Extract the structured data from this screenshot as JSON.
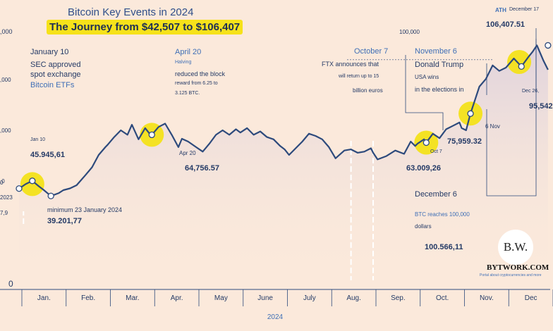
{
  "header": {
    "title": "Bitcoin Key Events in 2024",
    "subtitle": "The Journey from $42,507 to $106,407"
  },
  "brand": {
    "logo": "B.W.",
    "name": "BYTWORK.COM",
    "tagline": "Portal about cryptocurrencies and more"
  },
  "events": {
    "jan10": {
      "title": "January 10",
      "line1": "SEC approved",
      "line2": "spot exchange",
      "line3": "Bitcoin ETFs",
      "tag": "Jan 10",
      "value": "45.945,61"
    },
    "minimum": {
      "label": "minimum 23 January 2024",
      "value": "39.201,77"
    },
    "apr20": {
      "title": "April 20",
      "sub": "Halving",
      "line1": "reduced the block",
      "line2": "reward from 6.25 to",
      "line3": "3.125 BTC.",
      "tag": "Apr 20",
      "value": "64,756.57"
    },
    "oct7": {
      "title": "October 7",
      "line1": "FTX announces that",
      "line2": "will return up to 15",
      "line3": "billion euros",
      "tag": "Oct 7",
      "value": "63.009,26"
    },
    "nov6": {
      "title": "November 6",
      "line1": "Donald Trump",
      "line2": "USA wins",
      "line3": "in the elections in",
      "tag": "6 Nov",
      "value": "75,959.32"
    },
    "dec6": {
      "title": "December 6",
      "line1": "BTC reaches 100,000",
      "line2": "dollars",
      "value": "100.566,11"
    },
    "ath": {
      "label": "ATH",
      "date": "December 17",
      "value": "106,407.51"
    },
    "dec26": {
      "tag": "Dec 26,",
      "value": "95,542"
    }
  },
  "chart_data": {
    "type": "line",
    "title": "Bitcoin Key Events in 2024",
    "subtitle": "The Journey from $42,507 to $106,407",
    "xlabel": "2024",
    "ylabel": "",
    "categories": [
      "Jan.",
      "Feb.",
      "Mar.",
      "Apr.",
      "May",
      "June",
      "July",
      "Aug.",
      "Sep.",
      "Oct.",
      "Nov.",
      "Dec"
    ],
    "y_tick_labels": [
      "0",
      "100,000"
    ],
    "partial_y_tick_labels": [
      ",000",
      ",000",
      ",0",
      "7,9",
      "0",
      "2023"
    ],
    "ylim": [
      0,
      110000
    ],
    "grid": false,
    "series": [
      {
        "values": [
          [
            0.0,
            42500
          ],
          [
            0.15,
            44500
          ],
          [
            0.3,
            45945
          ],
          [
            0.45,
            43500
          ],
          [
            0.55,
            42000
          ],
          [
            0.72,
            39201
          ],
          [
            0.9,
            40500
          ],
          [
            1.0,
            41800
          ],
          [
            1.15,
            42600
          ],
          [
            1.3,
            44000
          ],
          [
            1.5,
            48500
          ],
          [
            1.65,
            52000
          ],
          [
            1.8,
            57500
          ],
          [
            1.95,
            61000
          ],
          [
            2.0,
            62000
          ],
          [
            2.15,
            65500
          ],
          [
            2.3,
            68500
          ],
          [
            2.45,
            66500
          ],
          [
            2.55,
            71000
          ],
          [
            2.7,
            64500
          ],
          [
            2.85,
            69500
          ],
          [
            2.95,
            67000
          ],
          [
            3.0,
            66500
          ],
          [
            3.15,
            70000
          ],
          [
            3.3,
            71500
          ],
          [
            3.45,
            66500
          ],
          [
            3.6,
            61000
          ],
          [
            3.68,
            64756
          ],
          [
            3.82,
            63500
          ],
          [
            4.0,
            61000
          ],
          [
            4.15,
            59000
          ],
          [
            4.3,
            62500
          ],
          [
            4.45,
            66500
          ],
          [
            4.6,
            68500
          ],
          [
            4.75,
            66500
          ],
          [
            4.9,
            69000
          ],
          [
            5.0,
            67500
          ],
          [
            5.15,
            69500
          ],
          [
            5.3,
            66500
          ],
          [
            5.45,
            68000
          ],
          [
            5.6,
            65500
          ],
          [
            5.75,
            64500
          ],
          [
            5.9,
            61500
          ],
          [
            6.0,
            60000
          ],
          [
            6.1,
            57500
          ],
          [
            6.25,
            60500
          ],
          [
            6.4,
            63500
          ],
          [
            6.55,
            67000
          ],
          [
            6.7,
            66000
          ],
          [
            6.85,
            64500
          ],
          [
            7.0,
            61000
          ],
          [
            7.15,
            56000
          ],
          [
            7.35,
            59500
          ],
          [
            7.5,
            60000
          ],
          [
            7.65,
            58500
          ],
          [
            7.8,
            59000
          ],
          [
            7.95,
            60500
          ],
          [
            8.0,
            58500
          ],
          [
            8.1,
            55500
          ],
          [
            8.3,
            57000
          ],
          [
            8.5,
            59500
          ],
          [
            8.7,
            58000
          ],
          [
            8.85,
            63500
          ],
          [
            8.95,
            61500
          ],
          [
            9.0,
            62500
          ],
          [
            9.15,
            64500
          ],
          [
            9.2,
            63009
          ],
          [
            9.35,
            67000
          ],
          [
            9.5,
            65000
          ],
          [
            9.65,
            69000
          ],
          [
            9.8,
            70500
          ],
          [
            9.95,
            72000
          ],
          [
            10.0,
            69500
          ],
          [
            10.1,
            68500
          ],
          [
            10.2,
            75959
          ],
          [
            10.4,
            88000
          ],
          [
            10.55,
            91500
          ],
          [
            10.7,
            97500
          ],
          [
            10.85,
            95000
          ],
          [
            11.0,
            96500
          ],
          [
            11.18,
            100566
          ],
          [
            11.35,
            97000
          ],
          [
            11.5,
            101000
          ],
          [
            11.6,
            103500
          ],
          [
            11.7,
            106407
          ],
          [
            11.85,
            99500
          ],
          [
            11.95,
            95542
          ]
        ]
      }
    ]
  }
}
